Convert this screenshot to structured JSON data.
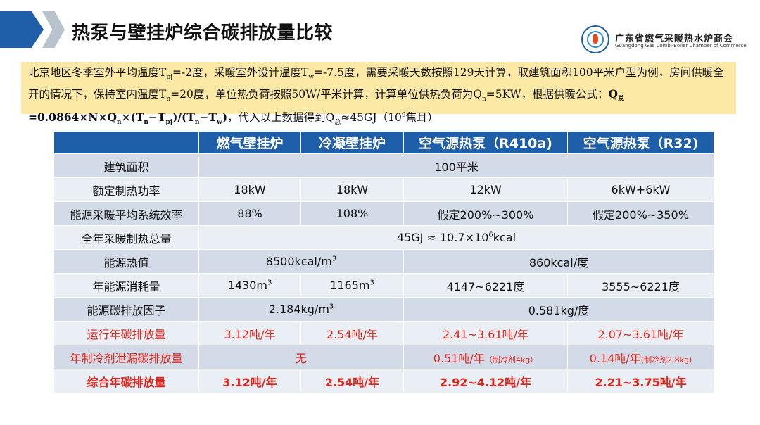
{
  "header": {
    "title": "热泵与壁挂炉综合碳排放量比较",
    "org_name_cn": "广东省燃气采暖热水炉商会",
    "org_name_en": "Guangdong Gas Combi-Boiler Chamber of Commerce",
    "accent": "#1f5ea8"
  },
  "note": {
    "p1": "北京地区冬季室外平均温度T",
    "s1": "pj",
    "p2": "=-2度，采暖室外设计温度T",
    "s2": "w",
    "p3": "=-7.5度，需要采暖天数按照129天计算，取建筑面积100平米户型为例，房间供暖全开的情况下，保持室内温度T",
    "s3": "n",
    "p4": "=20度，单位热负荷按照50W/平米计算，计算单位供热负荷为Q",
    "s4": "n",
    "p5": "=5KW，根据供暖公式：",
    "f1": "Q",
    "fs1": "总",
    "f2": "=0.0864×N×Q",
    "fs2": "n",
    "f3": "×(T",
    "fs3": "n",
    "f4": "−T",
    "fs4": "pj",
    "f5": ")/(T",
    "fs5": "n",
    "f6": "−T",
    "fs6": "w",
    "f7": ")",
    "p6": "，代入以上数据得到Q",
    "s6": "总",
    "p7": "≈45GJ（10",
    "sup7": "9",
    "p8": "焦耳）",
    "bg": "#fde9a6"
  },
  "table": {
    "headers": [
      "",
      "燃气壁挂炉",
      "冷凝壁挂炉",
      "空气源热泵（R410a)",
      "空气源热泵（R32)"
    ],
    "area_label": "建筑面积",
    "area_value": "100平米",
    "power_label": "额定制热功率",
    "power": [
      "18kW",
      "18kW",
      "12kW",
      "6kW+6kW"
    ],
    "eff_label": "能源采暖平均系统效率",
    "eff": [
      "88%",
      "108%",
      "假定200%~300%",
      "假定200%~350%"
    ],
    "total_label": "全年采暖制热总量",
    "total_pre": "45GJ ≈ 10.7×10",
    "total_sup": "6",
    "total_post": "kcal",
    "heat_label": "能源热值",
    "heat_gas": "8500kcal/m",
    "heat_gas_sup": "3",
    "heat_elec": "860kcal/度",
    "cons_label": "年能源消耗量",
    "cons1": "1430m",
    "cons1_sup": "3",
    "cons2": "1165m",
    "cons2_sup": "3",
    "cons3": "4147~6221度",
    "cons4": "3555~6221度",
    "factor_label": "能源碳排放因子",
    "factor_gas": "2.184kg/m",
    "factor_gas_sup": "3",
    "factor_elec": "0.581kg/度",
    "op_label": "运行年碳排放量",
    "op": [
      "3.12吨/年",
      "2.54吨/年",
      "2.41~3.61吨/年",
      "2.07~3.61吨/年"
    ],
    "leak_label": "年制冷剂泄漏碳排放量",
    "leak_none": "无",
    "leak3": "0.51吨/年",
    "leak3_note": "（制冷剂4kg）",
    "leak4": "0.14吨/年",
    "leak4_note": "(制冷剂2.8kg)",
    "sum_label": "综合年碳排放量",
    "sum": [
      "3.12吨/年",
      "2.54吨/年",
      "2.92~4.12吨/年",
      "2.21~3.75吨/年"
    ],
    "header_bg": "#1f5ea8",
    "highlight_color": "#e0251b"
  }
}
